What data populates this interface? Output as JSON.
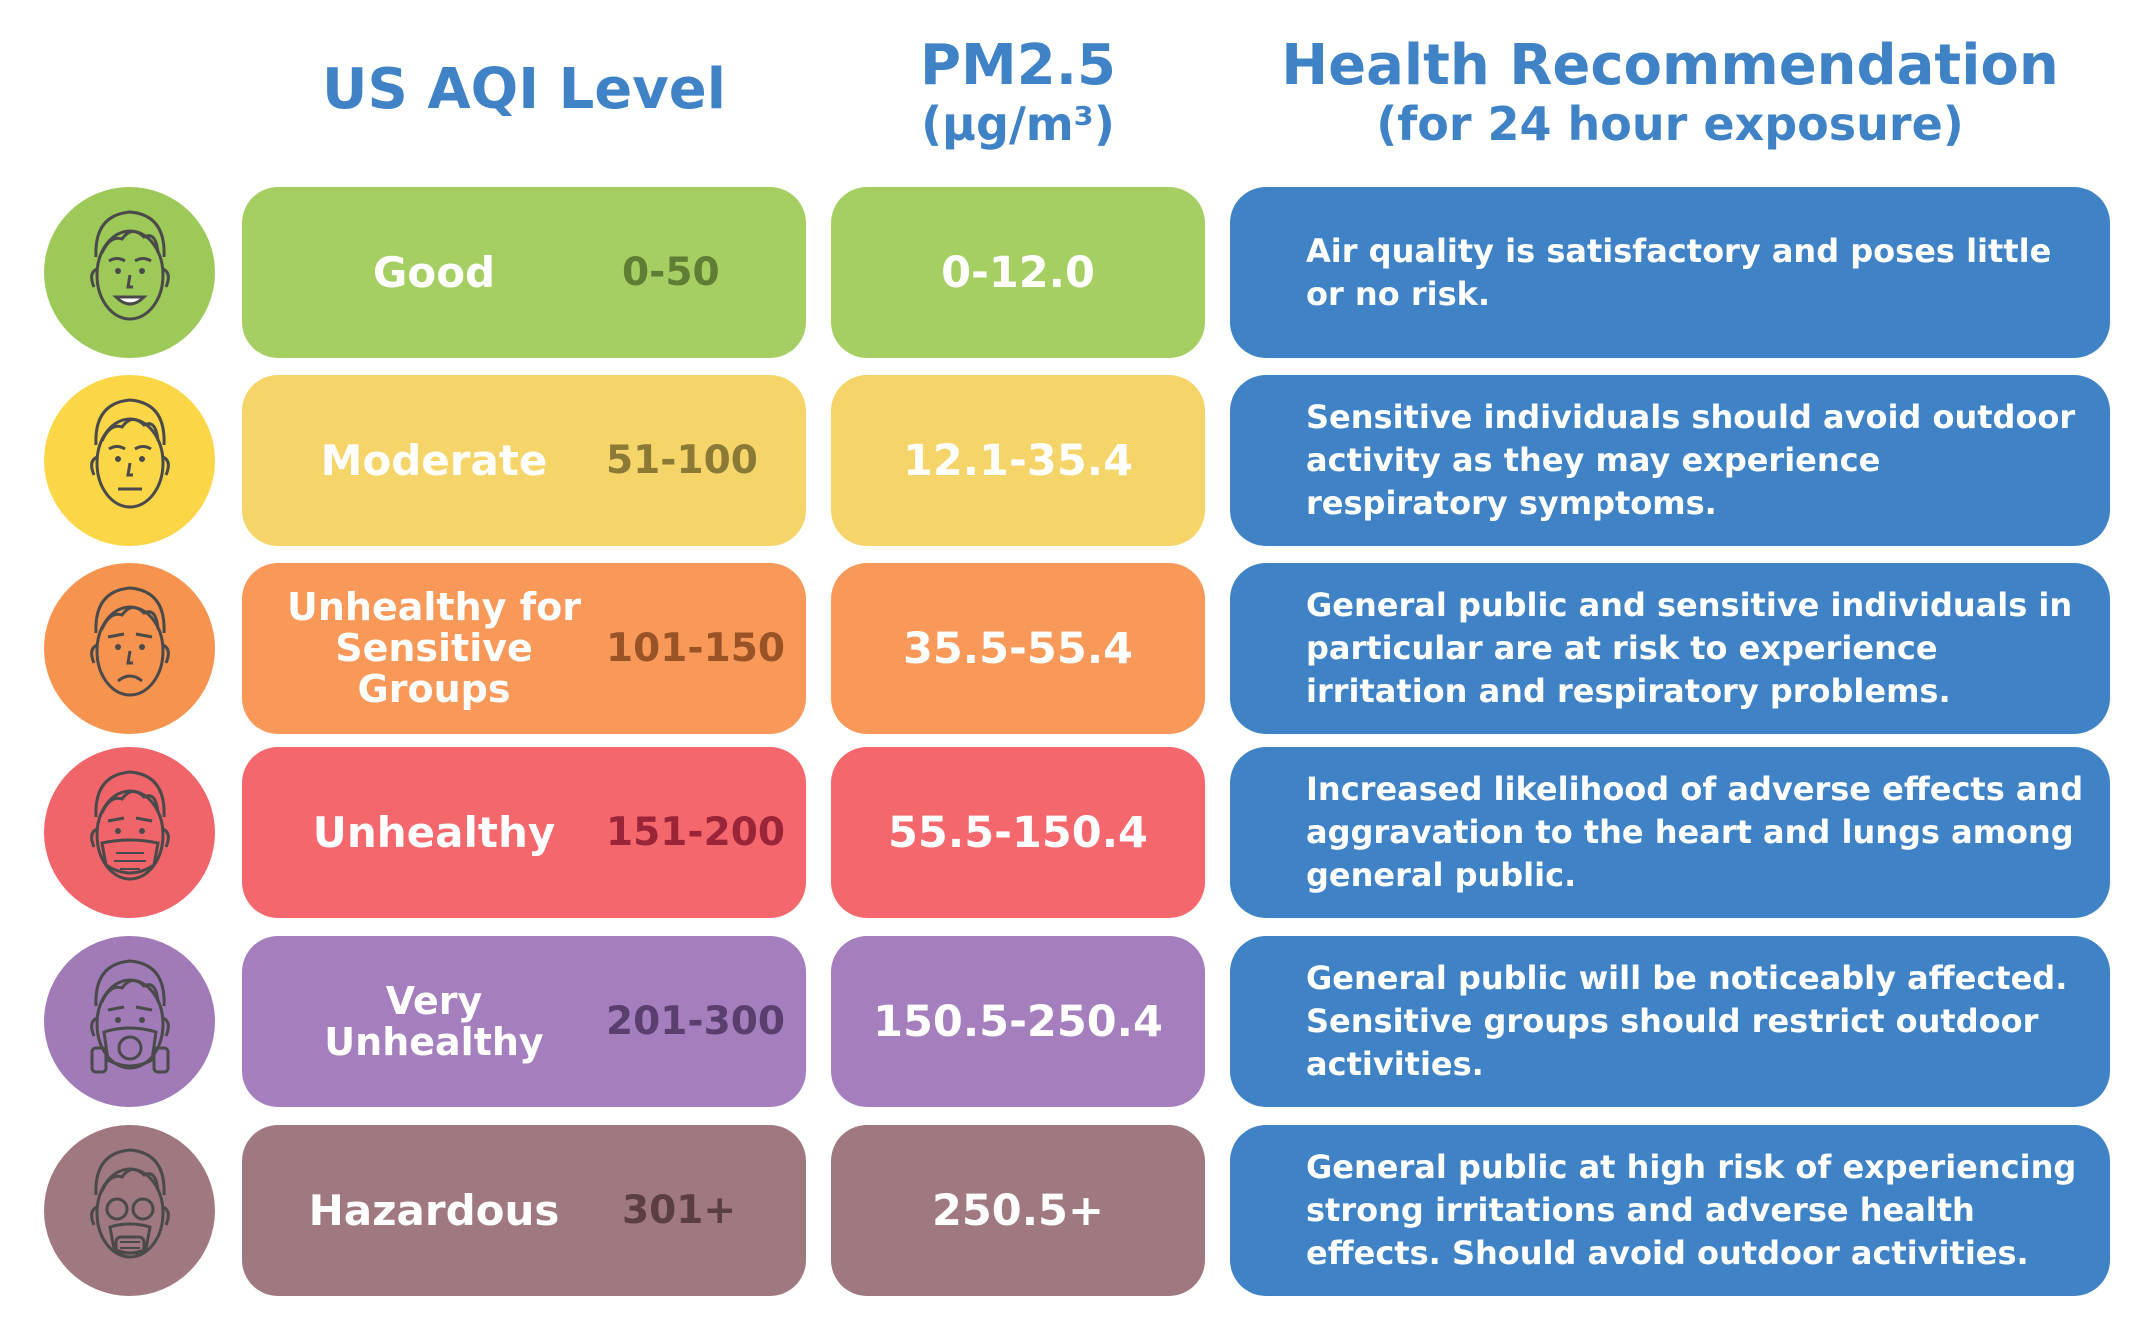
{
  "headers": {
    "aqi": "US AQI Level",
    "pm_line1": "PM2.5",
    "pm_line2": "(µg/m³)",
    "health_line1": "Health Recommendation",
    "health_line2": "(for 24 hour exposure)"
  },
  "rows": [
    {
      "level": "Good",
      "aqi_range": "0-50",
      "pm25": "0-12.0",
      "recommendation": "Air quality is satisfactory and poses little or no risk.",
      "face_icon": "smiling-face-icon",
      "colors": {
        "fill": "#a5cf63",
        "face_bg": "#9cc958",
        "range_text": "#5f7d34"
      }
    },
    {
      "level": "Moderate",
      "aqi_range": "51-100",
      "pm25": "12.1-35.4",
      "recommendation": "Sensitive individuals should avoid outdoor activity as they may experience respiratory symptoms.",
      "face_icon": "neutral-face-icon",
      "colors": {
        "fill": "#f5d469",
        "face_bg": "#fbd748",
        "range_text": "#8a7a36"
      }
    },
    {
      "level": "Unhealthy for Sensitive Groups",
      "aqi_range": "101-150",
      "pm25": "35.5-55.4",
      "recommendation": "General public and sensitive individuals in particular are at risk to experience irritation and respiratory problems.",
      "face_icon": "frowning-face-icon",
      "colors": {
        "fill": "#f8995a",
        "face_bg": "#f5934f",
        "range_text": "#9a5227"
      }
    },
    {
      "level": "Unhealthy",
      "aqi_range": "151-200",
      "pm25": "55.5-150.4",
      "recommendation": "Increased likelihood of adverse effects and aggravation to the heart and lungs among general public.",
      "face_icon": "face-mask-icon",
      "colors": {
        "fill": "#f4676d",
        "face_bg": "#f0656a",
        "range_text": "#9a2438"
      }
    },
    {
      "level": "Very Unhealthy",
      "aqi_range": "201-300",
      "pm25": "150.5-250.4",
      "recommendation": "General public will be noticeably affected. Sensitive groups should restrict outdoor activities.",
      "face_icon": "respirator-mask-icon",
      "colors": {
        "fill": "#a57ebd",
        "face_bg": "#a07bb8",
        "range_text": "#5a3e6e"
      }
    },
    {
      "level": "Hazardous",
      "aqi_range": "301+",
      "pm25": "250.5+",
      "recommendation": "General public at high risk of experiencing strong irritations and adverse health effects. Should avoid outdoor activities.",
      "face_icon": "gas-mask-icon",
      "colors": {
        "fill": "#a07880",
        "face_bg": "#a07880",
        "range_text": "#5b3d44"
      }
    }
  ]
}
